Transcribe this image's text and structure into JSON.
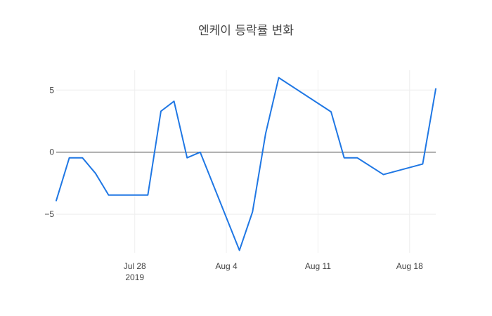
{
  "chart_data": {
    "type": "line",
    "title": "엔케이 등락률 변화",
    "xlabel": "",
    "ylabel": "",
    "x": [
      "2019-07-22",
      "2019-07-23",
      "2019-07-24",
      "2019-07-25",
      "2019-07-26",
      "2019-07-29",
      "2019-07-30",
      "2019-07-31",
      "2019-08-01",
      "2019-08-02",
      "2019-08-05",
      "2019-08-06",
      "2019-08-07",
      "2019-08-08",
      "2019-08-12",
      "2019-08-13",
      "2019-08-14",
      "2019-08-16",
      "2019-08-19",
      "2019-08-20"
    ],
    "series": [
      {
        "values": [
          -3.9,
          -0.45,
          -0.45,
          -1.7,
          -3.45,
          -3.45,
          3.3,
          4.1,
          -0.45,
          0.0,
          -7.9,
          -4.8,
          1.5,
          6.0,
          3.25,
          -0.45,
          -0.45,
          -1.8,
          -0.95,
          5.1
        ],
        "color": "#1f77e4"
      }
    ],
    "x_ticks": [
      {
        "date": "2019-07-28",
        "label": "Jul 28",
        "sublabel": "2019"
      },
      {
        "date": "2019-08-04",
        "label": "Aug 4"
      },
      {
        "date": "2019-08-11",
        "label": "Aug 11"
      },
      {
        "date": "2019-08-18",
        "label": "Aug 18"
      }
    ],
    "y_ticks": [
      5,
      0,
      -5
    ],
    "xlim": [
      "2019-07-22",
      "2019-08-20"
    ],
    "ylim": [
      -8.1,
      6.6
    ],
    "grid": true,
    "zero_line": true,
    "legend": false
  }
}
